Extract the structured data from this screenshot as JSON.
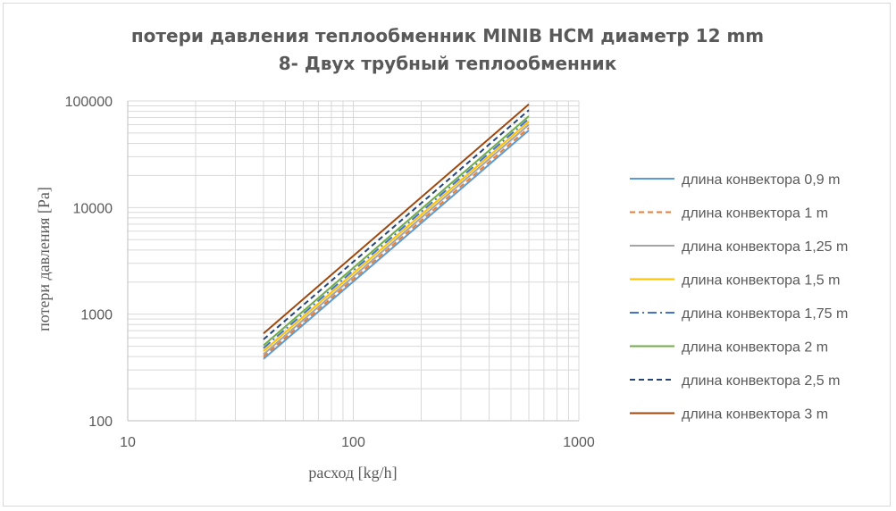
{
  "chart_data": {
    "type": "line",
    "title_line1": "потери давления теплообменник MINIB HCM диаметр 12 mm",
    "title_line2": "8- Двух трубный теплообменник",
    "xlabel": "расход [kg/h]",
    "ylabel": "потери давления [Pa]",
    "x_scale": "log",
    "y_scale": "log",
    "xlim": [
      10,
      1000
    ],
    "ylim": [
      100,
      100000
    ],
    "x_tick_labels": [
      "10",
      "100",
      "1000"
    ],
    "y_tick_labels": [
      "100",
      "1000",
      "10000",
      "100000"
    ],
    "grid": true,
    "legend_position": "right",
    "x": [
      40,
      600
    ],
    "series": [
      {
        "name": "длина конвектора 0,9 m",
        "values": [
          380,
          53000
        ],
        "color": "#5b9bd5",
        "dash": "solid"
      },
      {
        "name": "длина конвектора 1 m",
        "values": [
          400,
          56000
        ],
        "color": "#ed7d31",
        "dash": "dashed"
      },
      {
        "name": "длина конвектора 1,25 m",
        "values": [
          420,
          60000
        ],
        "color": "#a5a5a5",
        "dash": "solid"
      },
      {
        "name": "длина конвектора 1,5 m",
        "values": [
          450,
          64000
        ],
        "color": "#ffc000",
        "dash": "solid"
      },
      {
        "name": "длина конвектора 1,75 m",
        "values": [
          480,
          68000
        ],
        "color": "#4472c4",
        "dash": "dashdot"
      },
      {
        "name": "длина конвектора 2 m",
        "values": [
          510,
          72000
        ],
        "color": "#70ad47",
        "dash": "solid"
      },
      {
        "name": "длина конвектора 2,5 m",
        "values": [
          580,
          82000
        ],
        "color": "#264478",
        "dash": "dashed"
      },
      {
        "name": "длина конвектора 3 m",
        "values": [
          660,
          93000
        ],
        "color": "#9e480e",
        "dash": "solid"
      }
    ]
  }
}
